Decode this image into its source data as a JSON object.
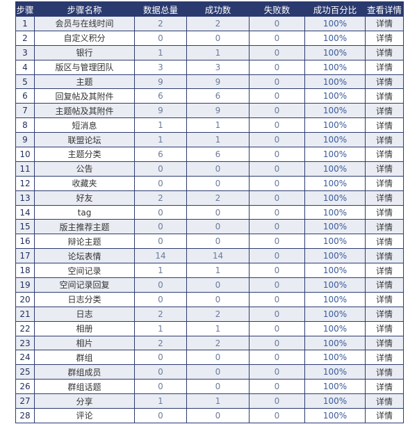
{
  "table": {
    "headers": [
      "步骤",
      "步骤名称",
      "数据总量",
      "成功数",
      "失败数",
      "成功百分比",
      "查看详情"
    ],
    "rows": [
      [
        1,
        "会员与在线时间",
        2,
        2,
        0,
        "100%",
        "详情"
      ],
      [
        2,
        "自定义积分",
        0,
        0,
        0,
        "100%",
        "详情"
      ],
      [
        3,
        "银行",
        1,
        1,
        0,
        "100%",
        "详情"
      ],
      [
        4,
        "版区与管理团队",
        3,
        3,
        0,
        "100%",
        "详情"
      ],
      [
        5,
        "主题",
        9,
        9,
        0,
        "100%",
        "详情"
      ],
      [
        6,
        "回复帖及其附件",
        6,
        6,
        0,
        "100%",
        "详情"
      ],
      [
        7,
        "主题帖及其附件",
        9,
        9,
        0,
        "100%",
        "详情"
      ],
      [
        8,
        "短消息",
        1,
        1,
        0,
        "100%",
        "详情"
      ],
      [
        9,
        "联盟论坛",
        1,
        1,
        0,
        "100%",
        "详情"
      ],
      [
        10,
        "主题分类",
        6,
        6,
        0,
        "100%",
        "详情"
      ],
      [
        11,
        "公告",
        0,
        0,
        0,
        "100%",
        "详情"
      ],
      [
        12,
        "收藏夹",
        0,
        0,
        0,
        "100%",
        "详情"
      ],
      [
        13,
        "好友",
        2,
        2,
        0,
        "100%",
        "详情"
      ],
      [
        14,
        "tag",
        0,
        0,
        0,
        "100%",
        "详情"
      ],
      [
        15,
        "版主推荐主题",
        0,
        0,
        0,
        "100%",
        "详情"
      ],
      [
        16,
        "辩论主题",
        0,
        0,
        0,
        "100%",
        "详情"
      ],
      [
        17,
        "论坛表情",
        14,
        14,
        0,
        "100%",
        "详情"
      ],
      [
        18,
        "空间记录",
        1,
        1,
        0,
        "100%",
        "详情"
      ],
      [
        19,
        "空间记录回复",
        0,
        0,
        0,
        "100%",
        "详情"
      ],
      [
        20,
        "日志分类",
        0,
        0,
        0,
        "100%",
        "详情"
      ],
      [
        21,
        "日志",
        2,
        2,
        0,
        "100%",
        "详情"
      ],
      [
        22,
        "相册",
        1,
        1,
        0,
        "100%",
        "详情"
      ],
      [
        23,
        "相片",
        2,
        2,
        0,
        "100%",
        "详情"
      ],
      [
        24,
        "群组",
        0,
        0,
        0,
        "100%",
        "详情"
      ],
      [
        25,
        "群组成员",
        0,
        0,
        0,
        "100%",
        "详情"
      ],
      [
        26,
        "群组话题",
        0,
        0,
        0,
        "100%",
        "详情"
      ],
      [
        27,
        "分享",
        1,
        1,
        0,
        "100%",
        "详情"
      ],
      [
        28,
        "评论",
        0,
        0,
        0,
        "100%",
        "详情"
      ]
    ]
  }
}
